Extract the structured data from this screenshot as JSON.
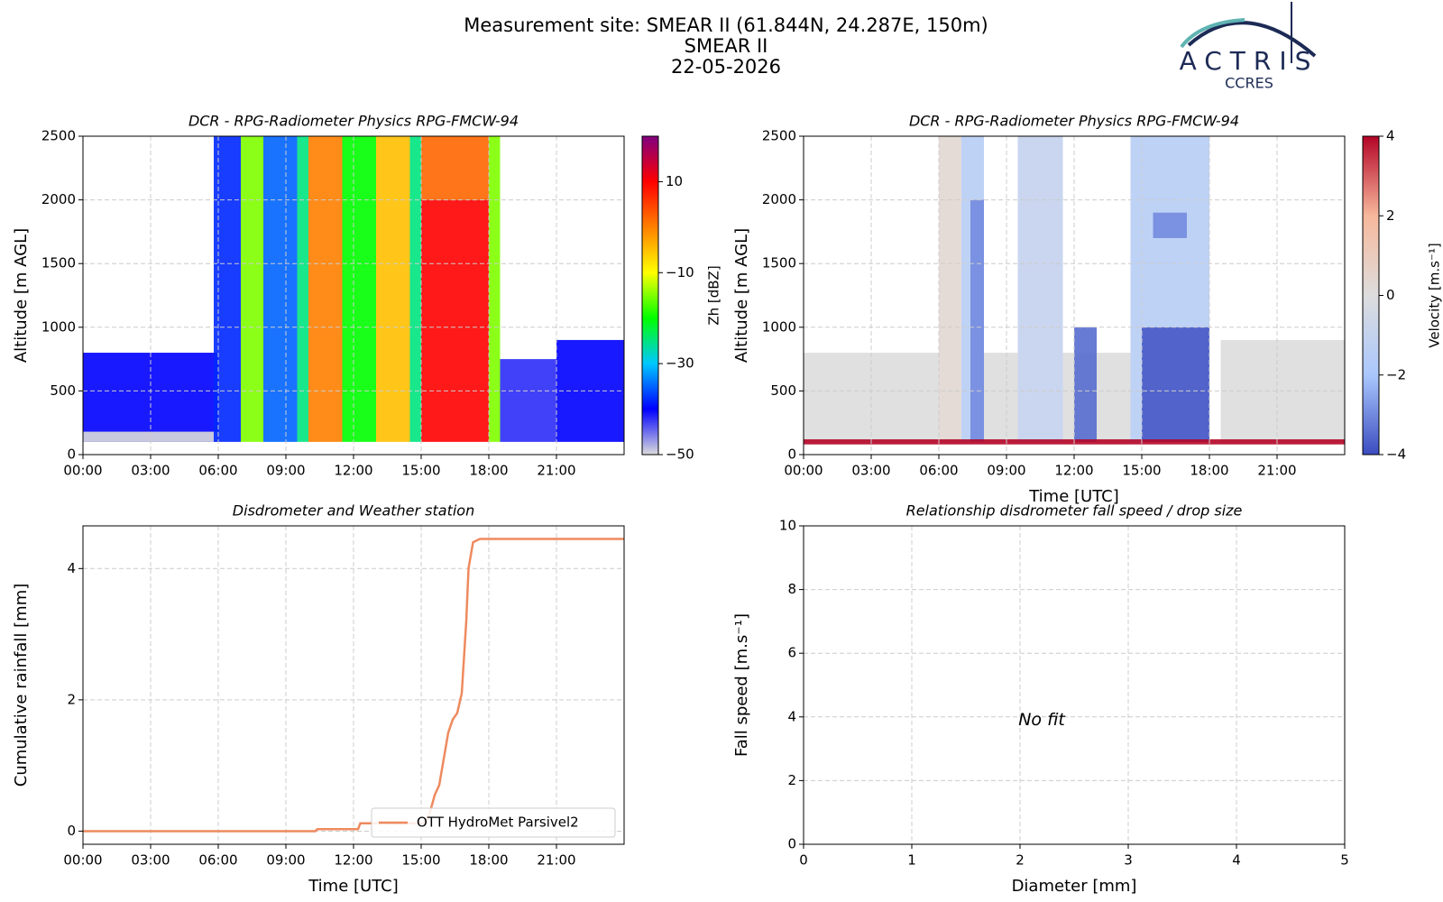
{
  "header": {
    "lines": [
      "Measurement site: SMEAR II (61.844N, 24.287E, 150m)",
      "SMEAR II",
      "22-05-2026"
    ],
    "logo": "ACTRIS",
    "logo_sub": "CCRES"
  },
  "chart_data": [
    {
      "type": "heatmap",
      "title": "DCR - RPG-Radiometer Physics RPG-FMCW-94",
      "ylabel": "Altitude [m AGL]",
      "xlim": [
        0,
        24
      ],
      "xticks": [
        {
          "value": 0,
          "label": "00:00"
        },
        {
          "value": 3,
          "label": "03:00"
        },
        {
          "value": 6,
          "label": "06:00"
        },
        {
          "value": 9,
          "label": "09:00"
        },
        {
          "value": 12,
          "label": "12:00"
        },
        {
          "value": 15,
          "label": "15:00"
        },
        {
          "value": 18,
          "label": "18:00"
        },
        {
          "value": 21,
          "label": "21:00"
        }
      ],
      "ylim": [
        0,
        2500
      ],
      "yticks": [
        0,
        500,
        1000,
        1500,
        2000,
        2500
      ],
      "grid": true,
      "colorbar_label": "Zh [dBZ]",
      "clim": [
        -50,
        20
      ],
      "cticks": [
        {
          "value": -50,
          "label": "−50"
        },
        {
          "value": -30,
          "label": "−30"
        },
        {
          "value": -10,
          "label": "−10"
        },
        10
      ],
      "colormap": [
        "#dcdcdc",
        "#0000ff",
        "#00c8ff",
        "#00ff00",
        "#ffff00",
        "#ff8000",
        "#ff0000",
        "#800080"
      ],
      "cells": [
        {
          "x": [
            0,
            6
          ],
          "y": [
            100,
            800
          ],
          "value": -40
        },
        {
          "x": [
            0,
            6
          ],
          "y": [
            100,
            180
          ],
          "value": -50
        },
        {
          "x": [
            21,
            24
          ],
          "y": [
            100,
            900
          ],
          "value": -40
        },
        {
          "x": [
            18.5,
            21
          ],
          "y": [
            100,
            750
          ],
          "value": -42
        },
        {
          "x": [
            5.8,
            7
          ],
          "y": [
            100,
            2500
          ],
          "value": -38
        },
        {
          "x": [
            7,
            8
          ],
          "y": [
            100,
            2500
          ],
          "value": -15
        },
        {
          "x": [
            8,
            9.5
          ],
          "y": [
            100,
            2500
          ],
          "value": -35
        },
        {
          "x": [
            9.5,
            10
          ],
          "y": [
            100,
            2500
          ],
          "value": -25
        },
        {
          "x": [
            10,
            11.5
          ],
          "y": [
            100,
            2500
          ],
          "value": 0
        },
        {
          "x": [
            11.5,
            13
          ],
          "y": [
            100,
            2500
          ],
          "value": -20
        },
        {
          "x": [
            13,
            14.5
          ],
          "y": [
            100,
            2500
          ],
          "value": -5
        },
        {
          "x": [
            14.5,
            15
          ],
          "y": [
            100,
            2500
          ],
          "value": -25
        },
        {
          "x": [
            15,
            18
          ],
          "y": [
            100,
            2000
          ],
          "value": 10
        },
        {
          "x": [
            15,
            18
          ],
          "y": [
            2000,
            2500
          ],
          "value": 2
        },
        {
          "x": [
            18,
            18.5
          ],
          "y": [
            100,
            2500
          ],
          "value": -15
        }
      ]
    },
    {
      "type": "heatmap",
      "title": "DCR - RPG-Radiometer Physics RPG-FMCW-94",
      "ylabel": "Altitude [m AGL]",
      "xlabel": "Time [UTC]",
      "xlim": [
        0,
        24
      ],
      "xticks": [
        {
          "value": 0,
          "label": "00:00"
        },
        {
          "value": 3,
          "label": "03:00"
        },
        {
          "value": 6,
          "label": "06:00"
        },
        {
          "value": 9,
          "label": "09:00"
        },
        {
          "value": 12,
          "label": "12:00"
        },
        {
          "value": 15,
          "label": "15:00"
        },
        {
          "value": 18,
          "label": "18:00"
        },
        {
          "value": 21,
          "label": "21:00"
        }
      ],
      "ylim": [
        0,
        2500
      ],
      "yticks": [
        0,
        500,
        1000,
        1500,
        2000,
        2500
      ],
      "grid": true,
      "colorbar_label": "Velocity [m.s⁻¹]",
      "clim": [
        -4,
        4
      ],
      "cticks": [
        {
          "value": -4,
          "label": "−4"
        },
        {
          "value": -2,
          "label": "−2"
        },
        0,
        2,
        4
      ],
      "colormap": [
        "#3b4cc0",
        "#aac7fd",
        "#dddddd",
        "#f7b89c",
        "#b40426"
      ],
      "cells": [
        {
          "x": [
            0,
            6
          ],
          "y": [
            100,
            800
          ],
          "value": 0
        },
        {
          "x": [
            18.5,
            24
          ],
          "y": [
            100,
            900
          ],
          "value": 0
        },
        {
          "x": [
            6,
            7
          ],
          "y": [
            100,
            2500
          ],
          "value": 0.3
        },
        {
          "x": [
            7,
            8
          ],
          "y": [
            100,
            2500
          ],
          "value": -1.5
        },
        {
          "x": [
            7.4,
            8
          ],
          "y": [
            100,
            2000
          ],
          "value": -3
        },
        {
          "x": [
            8,
            9.5
          ],
          "y": [
            100,
            800
          ],
          "value": 0
        },
        {
          "x": [
            9.5,
            11.5
          ],
          "y": [
            100,
            2500
          ],
          "value": -1
        },
        {
          "x": [
            11.5,
            14.5
          ],
          "y": [
            100,
            800
          ],
          "value": 0
        },
        {
          "x": [
            12,
            13
          ],
          "y": [
            100,
            1000
          ],
          "value": -3.5
        },
        {
          "x": [
            14.5,
            18
          ],
          "y": [
            100,
            2500
          ],
          "value": -1.5
        },
        {
          "x": [
            15,
            18
          ],
          "y": [
            100,
            1000
          ],
          "value": -3.8
        },
        {
          "x": [
            15.5,
            17
          ],
          "y": [
            1700,
            1900
          ],
          "value": -3
        },
        {
          "x": [
            0,
            24
          ],
          "y": [
            80,
            120
          ],
          "value": 4
        }
      ]
    },
    {
      "type": "line",
      "title": "Disdrometer and Weather station",
      "ylabel": "Cumulative rainfall [mm]",
      "xlabel": "Time [UTC]",
      "xlim": [
        0,
        24
      ],
      "xticks": [
        {
          "value": 0,
          "label": "00:00"
        },
        {
          "value": 3,
          "label": "03:00"
        },
        {
          "value": 6,
          "label": "06:00"
        },
        {
          "value": 9,
          "label": "09:00"
        },
        {
          "value": 12,
          "label": "12:00"
        },
        {
          "value": 15,
          "label": "15:00"
        },
        {
          "value": 18,
          "label": "18:00"
        },
        {
          "value": 21,
          "label": "21:00"
        }
      ],
      "ylim": [
        -0.2,
        4.65
      ],
      "yticks": [
        0,
        2,
        4
      ],
      "grid": true,
      "legend": "lower right",
      "x": [
        0,
        10.3,
        10.4,
        12.2,
        12.3,
        15.2,
        15.4,
        15.6,
        15.8,
        16,
        16.2,
        16.4,
        16.6,
        16.8,
        17,
        17.1,
        17.3,
        17.6,
        24
      ],
      "series": [
        {
          "name": "OTT HydroMet Parsivel2",
          "color": "#ee8a5e",
          "values": [
            0,
            0,
            0.03,
            0.03,
            0.12,
            0.12,
            0.3,
            0.55,
            0.7,
            1.1,
            1.5,
            1.7,
            1.8,
            2.1,
            3.2,
            4.0,
            4.4,
            4.45,
            4.45
          ]
        }
      ]
    },
    {
      "type": "scatter",
      "title": "Relationship disdrometer fall speed / drop size",
      "ylabel": "Fall speed [m.s⁻¹]",
      "xlabel": "Diameter [mm]",
      "xlim": [
        0,
        5
      ],
      "xticks": [
        0,
        1,
        2,
        3,
        4,
        5
      ],
      "ylim": [
        0,
        10
      ],
      "yticks": [
        0,
        2,
        4,
        6,
        8,
        10
      ],
      "grid": true,
      "annotation": "No fit"
    }
  ]
}
